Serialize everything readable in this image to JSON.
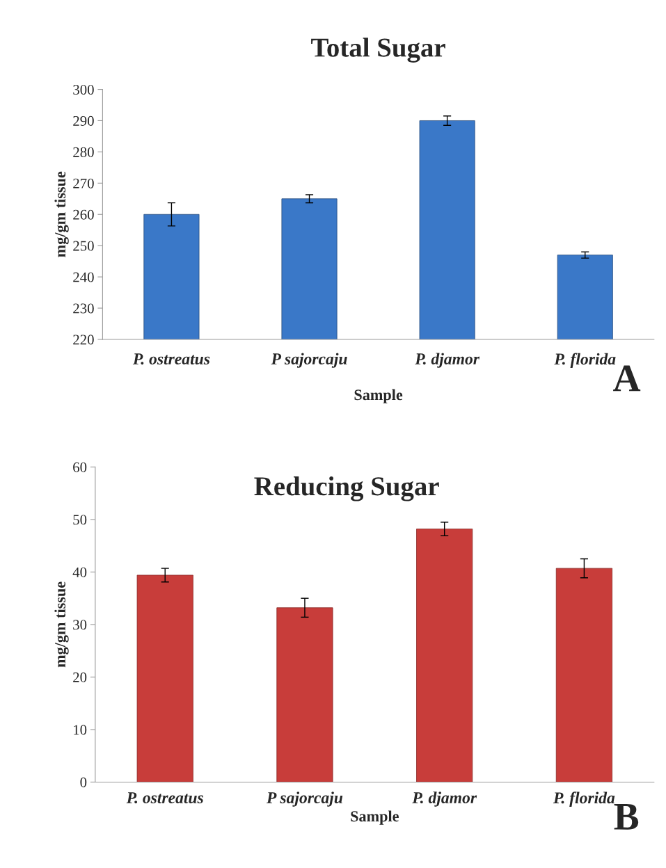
{
  "chart_data": [
    {
      "type": "bar",
      "title": "Total Sugar",
      "xlabel": "Sample",
      "ylabel": "mg/gm tissue",
      "categories": [
        "P. ostreatus",
        "P sajorcaju",
        "P. djamor",
        "P. florida"
      ],
      "values": [
        260,
        265,
        290,
        247
      ],
      "errors": [
        3.7,
        1.3,
        1.5,
        1.0
      ],
      "color": "#3a78c8",
      "ylim": [
        220,
        300
      ],
      "yticks": [
        220,
        230,
        240,
        250,
        260,
        270,
        280,
        290,
        300
      ],
      "grid": false,
      "legend": false,
      "annotations": [
        "A"
      ]
    },
    {
      "type": "bar",
      "title": "Reducing Sugar",
      "xlabel": "Sample",
      "ylabel": "mg/gm tissue",
      "categories": [
        "P. ostreatus",
        "P sajorcaju",
        "P. djamor",
        "P. florida"
      ],
      "values": [
        39.4,
        33.2,
        48.2,
        40.7
      ],
      "errors": [
        1.3,
        1.8,
        1.3,
        1.8
      ],
      "color": "#c83d3a",
      "ylim": [
        0,
        60
      ],
      "yticks": [
        0,
        10,
        20,
        30,
        40,
        50,
        60
      ],
      "grid": false,
      "legend": false,
      "annotations": [
        "B"
      ]
    }
  ]
}
